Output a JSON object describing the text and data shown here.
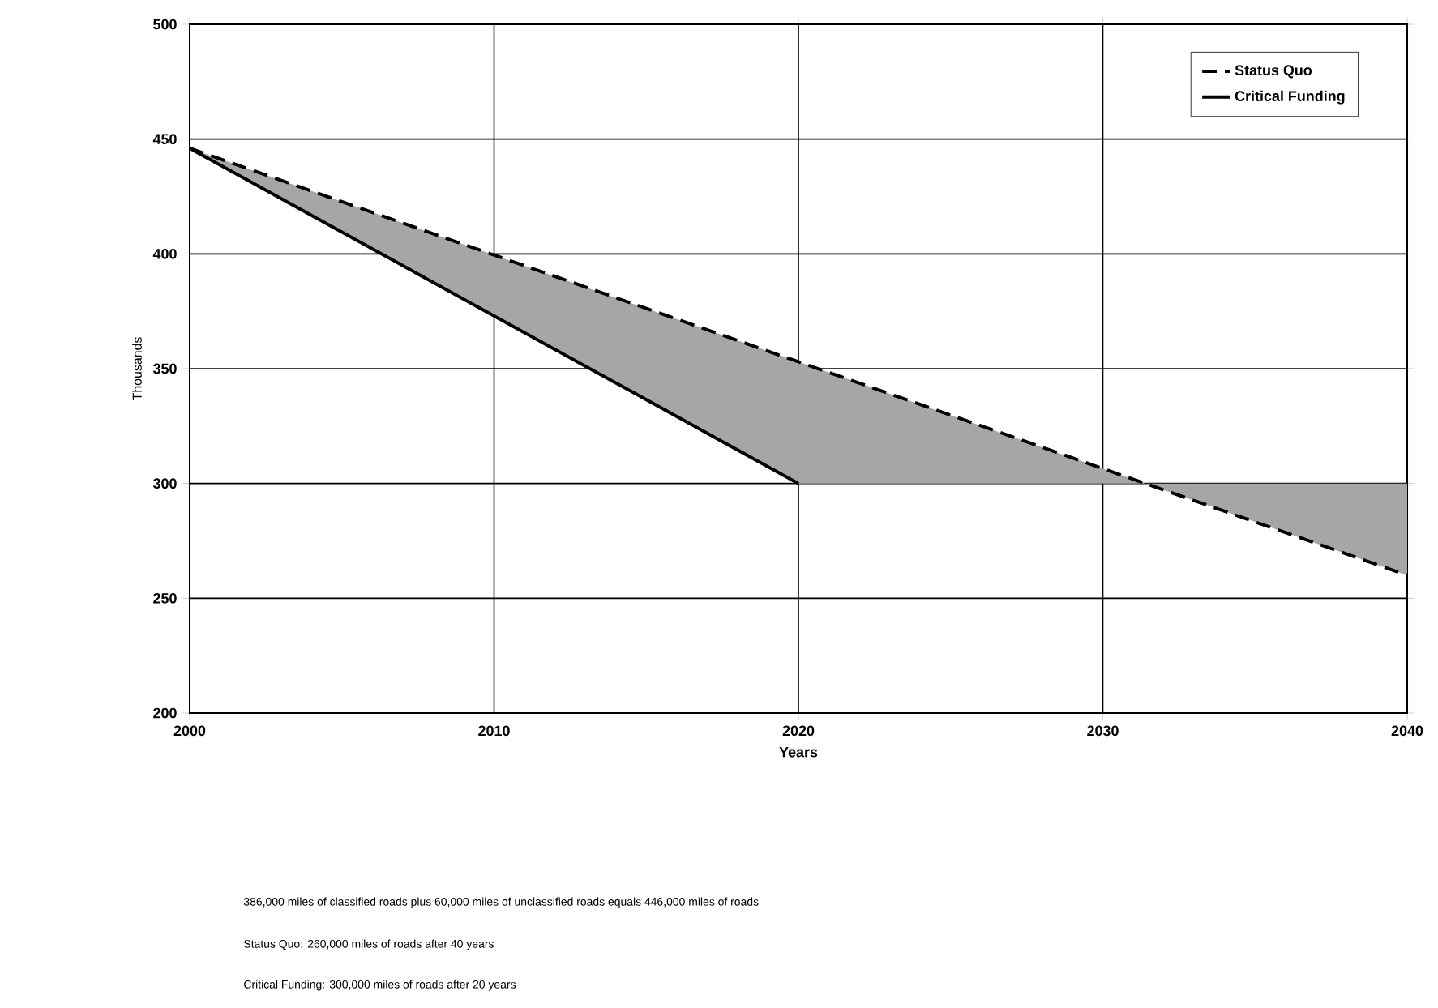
{
  "chart_data": {
    "type": "line",
    "ylabel": "Thousands",
    "xlabel": "Years",
    "xlim": [
      2000,
      2040
    ],
    "xticks": [
      2000,
      2010,
      2020,
      2030,
      2040
    ],
    "ylim": [
      200,
      500
    ],
    "yticks": [
      200,
      250,
      300,
      350,
      400,
      450,
      500
    ],
    "grid": true,
    "legend": "top right",
    "series": [
      {
        "name": "Status Quo",
        "color": "#000000",
        "line_style": "dashed",
        "x": [
          2000,
          2020,
          2031.4,
          2040
        ],
        "values": [
          446,
          353,
          300,
          260
        ],
        "lower": [
          446,
          300,
          300,
          260
        ],
        "upper": [
          446,
          353,
          300,
          300
        ]
      },
      {
        "name": "Critical Funding",
        "color": "#000000",
        "line_style": "solid",
        "x": [
          2000,
          2020
        ],
        "values": [
          446,
          300
        ]
      }
    ],
    "annotations": [
      "386,000 miles of classified roads plus 60,000 miles of unclassified roads equals 446,000 miles of roads",
      "Status Quo:  260,000 miles of roads after 40 years",
      "Critical Funding:  300,000 miles of roads after 20 years"
    ]
  }
}
